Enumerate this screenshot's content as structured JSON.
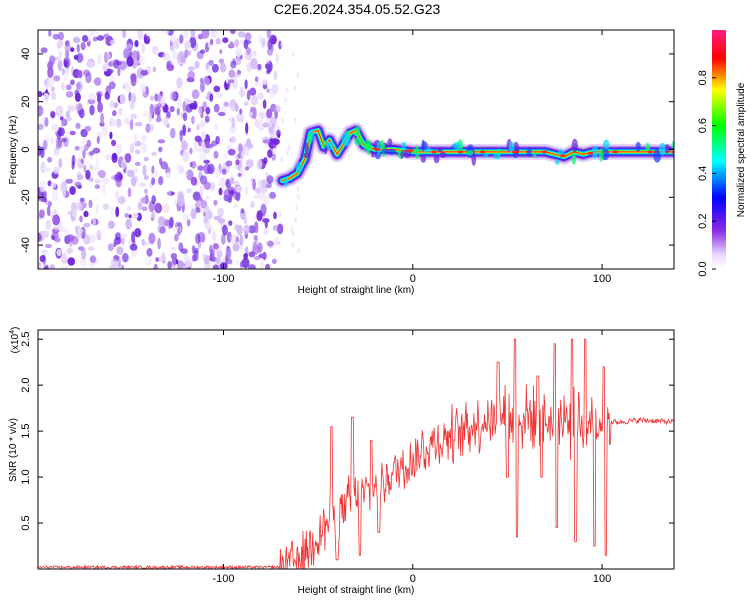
{
  "title": "C2E6.2024.354.05.52.G23",
  "chart_data": [
    {
      "type": "heatmap",
      "xlabel": "Height of straight line (km)",
      "ylabel": "Frequency (Hz)",
      "xlim": [
        -198,
        138
      ],
      "ylim": [
        -50,
        50
      ],
      "x_ticks": [
        -100,
        0,
        100
      ],
      "y_ticks": [
        -40,
        -20,
        0,
        20,
        40
      ],
      "noise_region_x": [
        -198,
        -70
      ],
      "ridge": {
        "x": [
          -69,
          -65,
          -61,
          -57,
          -54,
          -50,
          -47,
          -44,
          -40,
          -36,
          -33,
          -30,
          -26,
          -20,
          -10,
          0,
          20,
          40,
          60,
          70,
          75,
          80,
          85,
          90,
          95,
          100,
          110,
          120,
          138
        ],
        "y": [
          -13,
          -12,
          -10,
          -4,
          7,
          8,
          1,
          4,
          -2,
          3,
          7,
          8,
          2,
          0,
          0,
          -1,
          -1,
          -1,
          -1,
          -1,
          -2,
          -3,
          -1,
          -2,
          -1,
          -1,
          -1,
          -1,
          -1
        ]
      },
      "colorbar": {
        "label": "Normalized spectral amplitude",
        "ticks": [
          "0.0",
          "0.2",
          "0.4",
          "0.6",
          "0.8"
        ],
        "range": [
          0,
          1
        ],
        "colors": [
          "#ffffff",
          "#8a2be2",
          "#0000ff",
          "#00ffff",
          "#00ff00",
          "#ffff00",
          "#ff0000",
          "#ff1f7f"
        ]
      }
    },
    {
      "type": "line",
      "xlabel": "Height of straight line (km)",
      "ylabel": "SNR (10 * v/v)",
      "scale_label": "(x10",
      "scale_exp": "4",
      "scale_close": ")",
      "xlim": [
        -198,
        138
      ],
      "ylim": [
        0,
        2.6
      ],
      "x_ticks": [
        -100,
        0,
        100
      ],
      "y_ticks": [
        "0.5",
        "1.0",
        "1.5",
        "2.0",
        "2.5"
      ],
      "color": "#ee3333",
      "envelope": {
        "x": [
          -198,
          -70,
          -60,
          -50,
          -40,
          -30,
          -20,
          -10,
          0,
          10,
          20,
          30,
          40,
          50,
          60,
          70,
          80,
          90,
          100,
          110,
          120,
          138
        ],
        "y": [
          0.02,
          0.02,
          0.1,
          0.4,
          0.6,
          0.75,
          0.9,
          1.05,
          1.2,
          1.35,
          1.45,
          1.55,
          1.62,
          1.65,
          1.65,
          1.62,
          1.6,
          1.6,
          1.6,
          1.6,
          1.62,
          1.6
        ]
      },
      "spikes": [
        {
          "x": -43,
          "y": 1.55
        },
        {
          "x": -40,
          "y": 0.1
        },
        {
          "x": -32,
          "y": 1.65
        },
        {
          "x": -28,
          "y": 0.15
        },
        {
          "x": -22,
          "y": 1.4
        },
        {
          "x": -18,
          "y": 0.4
        },
        {
          "x": 45,
          "y": 2.25
        },
        {
          "x": 50,
          "y": 1.0
        },
        {
          "x": 54,
          "y": 2.5
        },
        {
          "x": 55,
          "y": 0.35
        },
        {
          "x": 66,
          "y": 2.1
        },
        {
          "x": 68,
          "y": 1.0
        },
        {
          "x": 75,
          "y": 2.45
        },
        {
          "x": 76,
          "y": 0.45
        },
        {
          "x": 84,
          "y": 2.5
        },
        {
          "x": 86,
          "y": 0.3
        },
        {
          "x": 91,
          "y": 2.5
        },
        {
          "x": 96,
          "y": 0.25
        },
        {
          "x": 101,
          "y": 2.2
        },
        {
          "x": 102,
          "y": 0.15
        }
      ]
    }
  ]
}
